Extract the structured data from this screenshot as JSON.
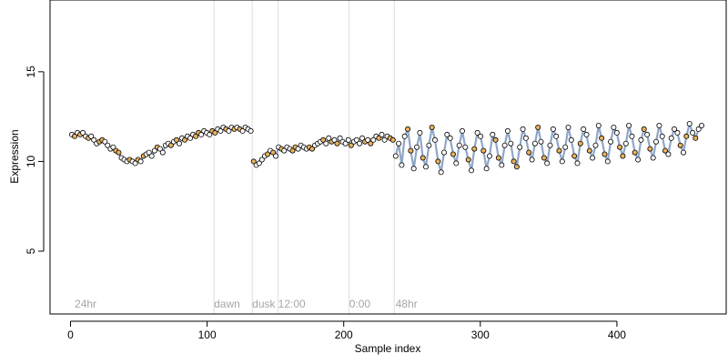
{
  "chart_data": {
    "type": "scatter",
    "title": "",
    "xlabel": "Sample index",
    "ylabel": "Expression",
    "xlim": [
      -15,
      480
    ],
    "ylim": [
      1.5,
      19.0
    ],
    "x_ticks": [
      0,
      100,
      200,
      300,
      400
    ],
    "y_ticks": [
      5,
      10,
      15
    ],
    "grid": false,
    "legend": "none",
    "annotations": [
      {
        "x": 3,
        "label": "24hr"
      },
      {
        "x": 105,
        "label": "dawn"
      },
      {
        "x": 133,
        "label": "dusk"
      },
      {
        "x": 152,
        "label": "12:00"
      },
      {
        "x": 204,
        "label": "0:00"
      },
      {
        "x": 238,
        "label": "48hr"
      }
    ],
    "vlines": [
      105,
      133,
      152,
      204,
      237
    ],
    "colors": {
      "point_fill_default": "#ffffff",
      "point_fill_highlight": "#e8b25e",
      "point_stroke": "#000000",
      "fit_line": "#8fa6c8",
      "vline": "#dddddd",
      "annotation": "#a6a6a6"
    },
    "segments": [
      {
        "x_start": 1,
        "x_end": 132,
        "y": [
          11.5,
          11.4,
          11.6,
          11.5,
          11.6,
          11.4,
          11.3,
          11.4,
          11.2,
          11.0,
          11.1,
          11.2,
          11.1,
          10.9,
          10.7,
          10.8,
          10.6,
          10.5,
          10.2,
          10.1,
          10.0,
          10.1,
          10.0,
          9.9,
          10.1,
          10.0,
          10.3,
          10.4,
          10.5,
          10.3,
          10.6,
          10.8,
          10.7,
          10.5,
          10.9,
          11.0,
          10.9,
          11.1,
          11.2,
          11.0,
          11.3,
          11.2,
          11.4,
          11.3,
          11.5,
          11.4,
          11.6,
          11.5,
          11.7,
          11.6,
          11.5,
          11.7,
          11.6,
          11.8,
          11.7,
          11.9,
          11.8,
          11.7,
          11.9,
          11.8,
          11.9,
          11.8,
          11.7,
          11.9,
          11.8,
          11.7
        ]
      },
      {
        "x_start": 134,
        "x_end": 236,
        "y": [
          10.0,
          9.8,
          9.9,
          10.1,
          10.3,
          10.4,
          10.6,
          10.5,
          10.3,
          10.8,
          10.7,
          10.6,
          10.8,
          10.7,
          10.6,
          10.8,
          10.7,
          10.9,
          10.8,
          10.7,
          10.8,
          10.7,
          10.9,
          11.0,
          11.1,
          11.2,
          11.0,
          11.3,
          11.1,
          11.2,
          11.0,
          11.3,
          11.1,
          11.0,
          11.2,
          10.9,
          11.1,
          11.2,
          11.0,
          11.3,
          11.1,
          11.2,
          11.0,
          11.2,
          11.4,
          11.3,
          11.5,
          11.2,
          11.4,
          11.3,
          11.2
        ]
      },
      {
        "x_start": 238,
        "x_end": 462,
        "y": [
          10.3,
          11.0,
          9.8,
          11.4,
          11.8,
          10.6,
          9.6,
          10.8,
          11.6,
          10.2,
          9.7,
          10.9,
          11.9,
          11.2,
          10.0,
          9.4,
          10.5,
          11.5,
          11.3,
          10.4,
          9.9,
          10.9,
          11.7,
          10.8,
          10.1,
          9.5,
          10.7,
          11.6,
          11.4,
          10.6,
          9.6,
          10.3,
          11.5,
          11.2,
          10.2,
          9.8,
          10.9,
          11.7,
          11.0,
          10.0,
          9.7,
          10.8,
          11.8,
          11.3,
          10.5,
          10.1,
          11.0,
          11.9,
          11.1,
          10.2,
          9.9,
          10.9,
          11.8,
          11.4,
          10.6,
          10.0,
          10.8,
          11.9,
          11.2,
          10.3,
          9.9,
          11.0,
          11.8,
          11.5,
          10.6,
          10.2,
          10.9,
          12.0,
          11.3,
          10.4,
          10.0,
          11.1,
          11.9,
          11.6,
          10.8,
          10.3,
          11.0,
          12.0,
          11.4,
          10.5,
          10.1,
          11.2,
          11.8,
          11.5,
          10.7,
          10.2,
          11.1,
          12.0,
          11.4,
          10.6,
          10.4,
          11.3,
          11.8,
          11.6,
          10.9,
          10.5,
          11.4,
          12.1,
          11.6,
          11.3,
          11.8,
          12.0
        ]
      }
    ]
  }
}
